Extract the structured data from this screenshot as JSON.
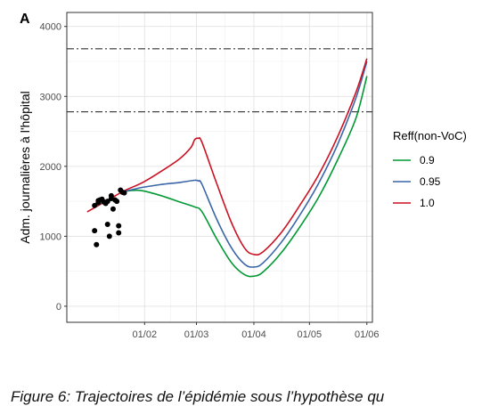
{
  "panel_label": "A",
  "caption": "Figure 6: Trajectoires de l’épidémie sous l’hypothèse qu",
  "chart_data": {
    "type": "line",
    "ylabel": "Adm. journalières à l'hôpital",
    "xlabel": "",
    "x_ticks": [
      "01/02",
      "01/03",
      "01/04",
      "01/05",
      "01/06"
    ],
    "x_tick_values": [
      31,
      59,
      90,
      120,
      151
    ],
    "x_range": [
      -11,
      154
    ],
    "y_ticks": [
      0,
      1000,
      2000,
      3000,
      4000
    ],
    "ylim": [
      -230,
      4200
    ],
    "grid": true,
    "legend": {
      "title": "Reff(non-VoC)",
      "placement": "right"
    },
    "reference_lines": [
      {
        "y": 3680,
        "style": "dash-dot"
      },
      {
        "y": 2780,
        "style": "dash-dot"
      }
    ],
    "series": [
      {
        "name": "0.9",
        "color": "#009933",
        "x": [
          20,
          24,
          30,
          40,
          50,
          58,
          62,
          70,
          78,
          85,
          90,
          95,
          105,
          115,
          125,
          135,
          145,
          151
        ],
        "y": [
          1640,
          1655,
          1650,
          1580,
          1490,
          1420,
          1350,
          960,
          620,
          450,
          430,
          490,
          770,
          1140,
          1560,
          2080,
          2680,
          3290
        ]
      },
      {
        "name": "0.95",
        "color": "#3a65a8",
        "x": [
          20,
          24,
          30,
          40,
          50,
          58,
          60,
          62,
          70,
          78,
          85,
          90,
          95,
          105,
          115,
          125,
          135,
          145,
          151
        ],
        "y": [
          1640,
          1665,
          1700,
          1740,
          1770,
          1800,
          1790,
          1740,
          1240,
          830,
          600,
          560,
          620,
          920,
          1310,
          1760,
          2300,
          2970,
          3500
        ]
      },
      {
        "name": "1.0",
        "color": "#cc1122",
        "x": [
          0,
          10,
          20,
          30,
          40,
          50,
          56,
          58,
          60,
          62,
          70,
          78,
          85,
          90,
          95,
          105,
          115,
          125,
          135,
          145,
          151
        ],
        "y": [
          1350,
          1500,
          1650,
          1770,
          1930,
          2110,
          2270,
          2380,
          2400,
          2340,
          1750,
          1190,
          830,
          740,
          780,
          1060,
          1450,
          1880,
          2410,
          3050,
          3540
        ]
      }
    ],
    "observations": {
      "x": [
        4,
        4,
        5,
        6,
        6,
        7,
        8,
        9,
        10,
        11,
        11,
        12,
        13,
        13,
        14,
        15,
        16,
        17,
        17,
        18,
        19,
        20
      ],
      "y": [
        1440,
        1080,
        880,
        1480,
        1510,
        1520,
        1530,
        1490,
        1470,
        1500,
        1170,
        1000,
        1580,
        1540,
        1390,
        1520,
        1500,
        1150,
        1050,
        1660,
        1630,
        1620
      ]
    }
  }
}
